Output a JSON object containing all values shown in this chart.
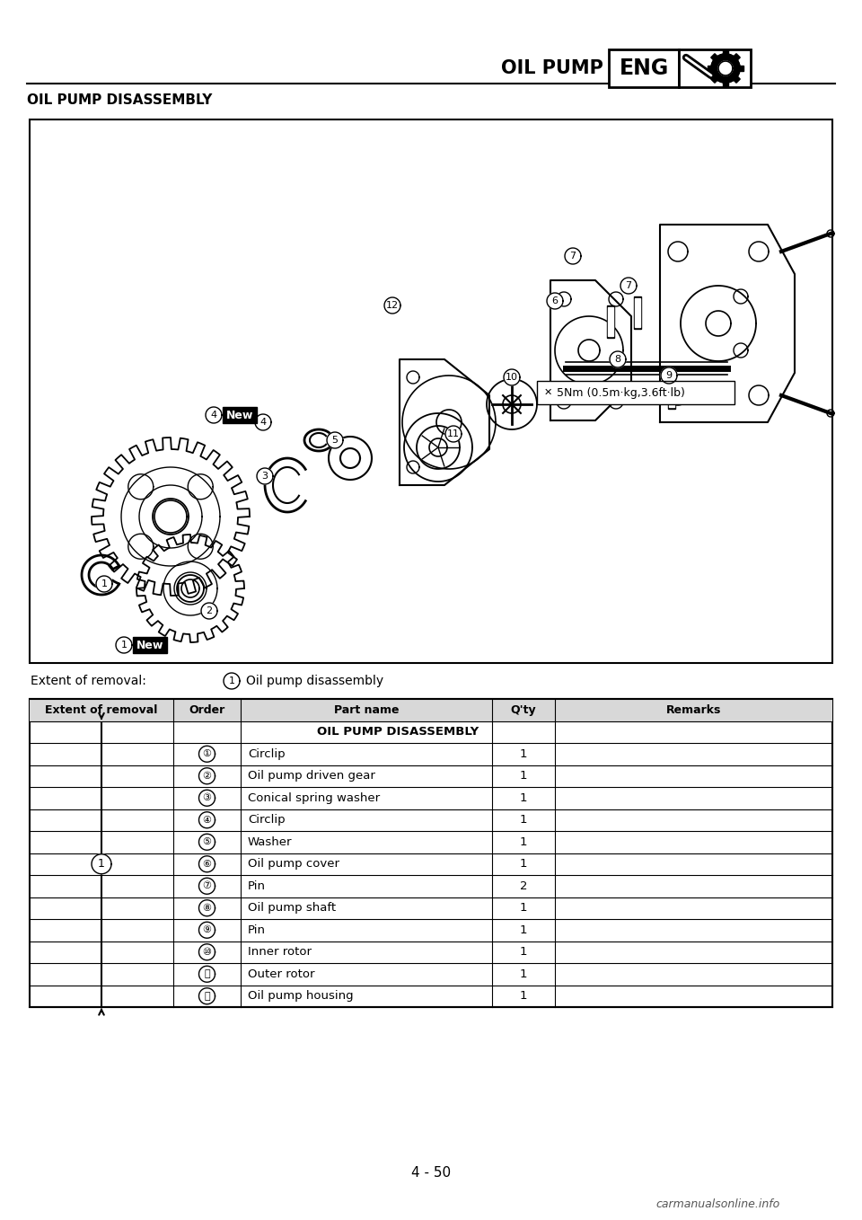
{
  "page_title": "OIL PUMP",
  "section_label": "ENG",
  "section_subtitle": "OIL PUMP DISASSEMBLY",
  "page_number": "4 - 50",
  "extent_of_removal_label": "Extent of removal:",
  "extent_desc": "Oil pump disassembly",
  "torque_note": "5Nm (0.5m·kg,3.6ft·lb)",
  "new_label": "New",
  "table_headers": [
    "Extent of removal",
    "Order",
    "Part name",
    "Q'ty",
    "Remarks"
  ],
  "table_section_title": "OIL PUMP DISASSEMBLY",
  "table_rows": [
    [
      "①",
      "Circlip",
      "1"
    ],
    [
      "②",
      "Oil pump driven gear",
      "1"
    ],
    [
      "③",
      "Conical spring washer",
      "1"
    ],
    [
      "④",
      "Circlip",
      "1"
    ],
    [
      "⑤",
      "Washer",
      "1"
    ],
    [
      "⑥",
      "Oil pump cover",
      "1"
    ],
    [
      "⑦",
      "Pin",
      "2"
    ],
    [
      "⑧",
      "Oil pump shaft",
      "1"
    ],
    [
      "⑨",
      "Pin",
      "1"
    ],
    [
      "⑩",
      "Inner rotor",
      "1"
    ],
    [
      "⑪",
      "Outer rotor",
      "1"
    ],
    [
      "⑫",
      "Oil pump housing",
      "1"
    ]
  ],
  "bg_color": "#ffffff"
}
